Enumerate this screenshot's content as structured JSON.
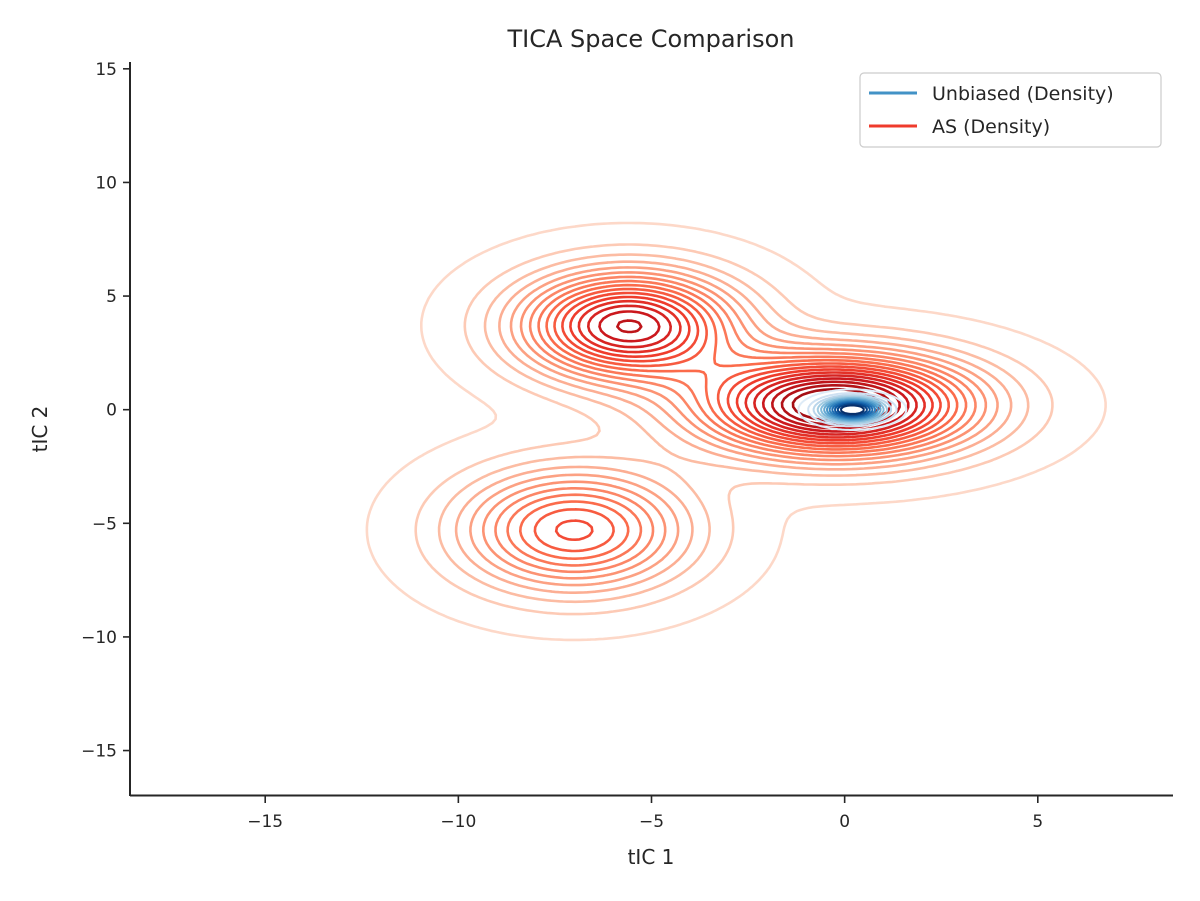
{
  "chart_data": {
    "type": "contour",
    "title": "TICA Space Comparison",
    "xlabel": "tIC 1",
    "ylabel": "tIC 2",
    "xlim": [
      -18.5,
      8.5
    ],
    "ylim": [
      -17,
      15.3
    ],
    "xticks": [
      -15,
      -10,
      -5,
      0,
      5
    ],
    "yticks": [
      -15,
      -10,
      -5,
      0,
      5,
      10,
      15
    ],
    "xtick_labels": [
      "−15",
      "−10",
      "−5",
      "0",
      "5"
    ],
    "ytick_labels": [
      "−15",
      "−10",
      "−5",
      "0",
      "5",
      "10",
      "15"
    ],
    "grid": false,
    "legend_position": "top-right",
    "series": [
      {
        "name": "Unbiased (Density)",
        "kind": "density-contour",
        "color": "#4292c6",
        "colormap": "Blues",
        "components": [
          {
            "center": [
              0.2,
              0.0
            ],
            "sigma": [
              0.55,
              0.35
            ],
            "weight": 1.0
          }
        ]
      },
      {
        "name": "AS (Density)",
        "kind": "density-contour",
        "color": "#ef3b2c",
        "colormap": "Reds",
        "components": [
          {
            "center": [
              -5.6,
              3.7
            ],
            "sigma": [
              1.9,
              1.6
            ],
            "weight": 0.8
          },
          {
            "center": [
              -7.0,
              -5.3
            ],
            "sigma": [
              2.0,
              1.8
            ],
            "weight": 0.55
          },
          {
            "center": [
              -0.2,
              0.2
            ],
            "sigma": [
              2.4,
              1.5
            ],
            "weight": 1.0
          }
        ]
      }
    ]
  }
}
